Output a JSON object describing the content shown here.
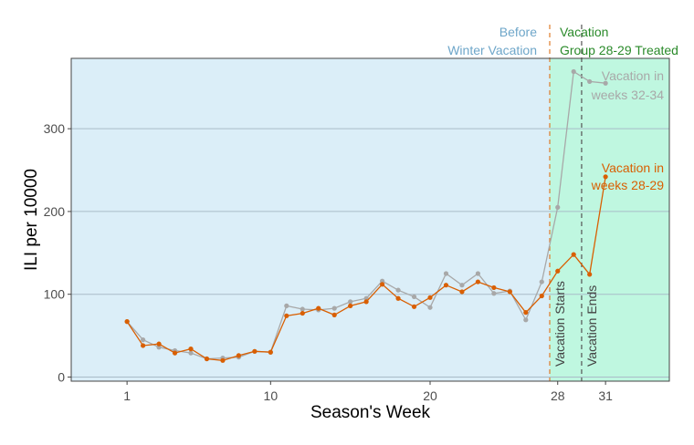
{
  "chart_data": {
    "type": "line",
    "xlabel": "Season's Week",
    "ylabel": "ILI per 10000",
    "xlim": [
      -2.5,
      35
    ],
    "ylim": [
      -5,
      385
    ],
    "x_ticks": [
      1,
      10,
      20,
      28,
      31
    ],
    "y_ticks": [
      0,
      100,
      200,
      300
    ],
    "grid": true,
    "colors": {
      "before_region": "#dbeef8",
      "vacation_region": "#bff7e0",
      "grey_series": "#a8a8a8",
      "orange_series": "#d95f02",
      "before_text": "#6ea6c9",
      "vacation_text": "#2a8a2a",
      "start_line": "#e07b2a",
      "end_line": "#555555"
    },
    "regions": [
      {
        "from": -2.5,
        "to": 27.5,
        "color_key": "before_region"
      },
      {
        "from": 27.5,
        "to": 35,
        "color_key": "vacation_region"
      }
    ],
    "vlines": [
      {
        "x": 27.5,
        "label": "Vacation Starts",
        "color_key": "start_line"
      },
      {
        "x": 29.5,
        "label": "Vacation Ends",
        "color_key": "end_line"
      }
    ],
    "header_left": [
      "Before",
      "Winter Vacation"
    ],
    "header_right": [
      "Vacation",
      "Group 28-29 Treated"
    ],
    "series": [
      {
        "label": [
          "Vacation in",
          "weeks 32-34"
        ],
        "color_key": "grey_series",
        "x": [
          1,
          2,
          3,
          4,
          5,
          6,
          7,
          8,
          9,
          10,
          11,
          12,
          13,
          14,
          15,
          16,
          17,
          18,
          19,
          20,
          21,
          22,
          23,
          24,
          25,
          26,
          27,
          28,
          29,
          30,
          31
        ],
        "values": [
          67,
          45,
          36,
          32,
          29,
          22,
          23,
          24,
          31,
          30,
          86,
          82,
          81,
          83,
          91,
          95,
          116,
          105,
          97,
          84,
          125,
          111,
          125,
          101,
          104,
          69,
          115,
          205,
          369,
          357,
          355
        ]
      },
      {
        "label": [
          "Vacation in",
          "weeks 28-29"
        ],
        "color_key": "orange_series",
        "x": [
          1,
          2,
          3,
          4,
          5,
          6,
          7,
          8,
          9,
          10,
          11,
          12,
          13,
          14,
          15,
          16,
          17,
          18,
          19,
          20,
          21,
          22,
          23,
          24,
          25,
          26,
          27,
          28,
          29,
          30,
          31
        ],
        "values": [
          67,
          38,
          40,
          29,
          34,
          22,
          20,
          26,
          31,
          30,
          74,
          77,
          83,
          75,
          86,
          91,
          112,
          95,
          85,
          96,
          111,
          103,
          115,
          108,
          103,
          78,
          98,
          128,
          148,
          124,
          242
        ]
      }
    ]
  }
}
